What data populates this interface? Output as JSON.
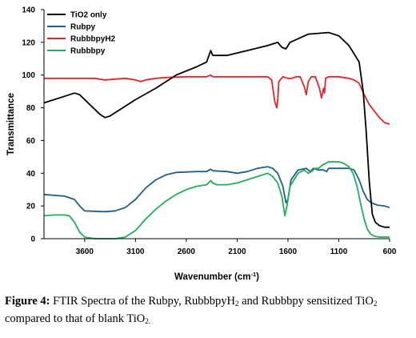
{
  "chart_data": {
    "type": "line",
    "xlabel": "Wavenumber (cm",
    "xlabel_sup": "-1",
    "xlabel_close": ")",
    "ylabel": "Transmittance",
    "xlim": [
      4000,
      600
    ],
    "ylim": [
      0,
      140
    ],
    "x_ticks": [
      3600,
      3100,
      2600,
      2100,
      1600,
      1100,
      600
    ],
    "y_ticks": [
      0,
      20,
      40,
      60,
      80,
      100,
      120,
      140
    ],
    "grid": false,
    "legend_position": "top-left",
    "series": [
      {
        "name": "TiO2 only",
        "color": "#000000",
        "points": [
          [
            4000,
            83
          ],
          [
            3900,
            85
          ],
          [
            3800,
            87
          ],
          [
            3700,
            89
          ],
          [
            3650,
            88
          ],
          [
            3550,
            82
          ],
          [
            3450,
            76
          ],
          [
            3400,
            74
          ],
          [
            3350,
            75
          ],
          [
            3250,
            79
          ],
          [
            3100,
            85
          ],
          [
            2900,
            92
          ],
          [
            2700,
            100
          ],
          [
            2500,
            105
          ],
          [
            2400,
            108
          ],
          [
            2360,
            115
          ],
          [
            2340,
            112
          ],
          [
            2200,
            112
          ],
          [
            2000,
            115
          ],
          [
            1800,
            118
          ],
          [
            1700,
            120
          ],
          [
            1660,
            117
          ],
          [
            1620,
            116
          ],
          [
            1580,
            120
          ],
          [
            1400,
            125
          ],
          [
            1200,
            126
          ],
          [
            1100,
            124
          ],
          [
            1000,
            118
          ],
          [
            900,
            108
          ],
          [
            860,
            90
          ],
          [
            830,
            65
          ],
          [
            800,
            35
          ],
          [
            770,
            15
          ],
          [
            740,
            10
          ],
          [
            700,
            8
          ],
          [
            650,
            7
          ],
          [
            600,
            7
          ]
        ]
      },
      {
        "name": "Rubpy",
        "color": "#1f5f8b",
        "points": [
          [
            4000,
            27
          ],
          [
            3900,
            26.5
          ],
          [
            3800,
            26
          ],
          [
            3700,
            24
          ],
          [
            3650,
            20
          ],
          [
            3600,
            17
          ],
          [
            3400,
            16.5
          ],
          [
            3300,
            17
          ],
          [
            3200,
            19
          ],
          [
            3100,
            24
          ],
          [
            3000,
            31
          ],
          [
            2900,
            36
          ],
          [
            2800,
            39
          ],
          [
            2700,
            40.5
          ],
          [
            2500,
            41
          ],
          [
            2400,
            41
          ],
          [
            2360,
            42.5
          ],
          [
            2340,
            41.5
          ],
          [
            2200,
            41
          ],
          [
            2100,
            40
          ],
          [
            2000,
            41
          ],
          [
            1900,
            43
          ],
          [
            1800,
            44
          ],
          [
            1750,
            43
          ],
          [
            1700,
            40
          ],
          [
            1650,
            32
          ],
          [
            1620,
            22
          ],
          [
            1600,
            24
          ],
          [
            1570,
            36
          ],
          [
            1500,
            42
          ],
          [
            1420,
            43
          ],
          [
            1380,
            41
          ],
          [
            1350,
            43
          ],
          [
            1300,
            42
          ],
          [
            1250,
            42
          ],
          [
            1220,
            41
          ],
          [
            1200,
            43
          ],
          [
            1100,
            43
          ],
          [
            1000,
            43
          ],
          [
            950,
            42
          ],
          [
            900,
            36
          ],
          [
            860,
            29
          ],
          [
            820,
            24
          ],
          [
            780,
            22
          ],
          [
            720,
            20.5
          ],
          [
            650,
            20
          ],
          [
            600,
            19
          ]
        ]
      },
      {
        "name": "RubbbpyH2",
        "color": "#e8242b",
        "points": [
          [
            4000,
            98
          ],
          [
            3800,
            98
          ],
          [
            3600,
            98
          ],
          [
            3500,
            98
          ],
          [
            3400,
            97
          ],
          [
            3200,
            98
          ],
          [
            3100,
            97
          ],
          [
            3050,
            96
          ],
          [
            3000,
            97
          ],
          [
            2900,
            98
          ],
          [
            2800,
            98.5
          ],
          [
            2600,
            99
          ],
          [
            2400,
            99
          ],
          [
            2360,
            100
          ],
          [
            2340,
            99
          ],
          [
            2200,
            99
          ],
          [
            2000,
            99
          ],
          [
            1900,
            99
          ],
          [
            1800,
            99
          ],
          [
            1760,
            97
          ],
          [
            1730,
            84
          ],
          [
            1710,
            80
          ],
          [
            1700,
            85
          ],
          [
            1690,
            96
          ],
          [
            1650,
            99
          ],
          [
            1600,
            98
          ],
          [
            1560,
            98
          ],
          [
            1520,
            99
          ],
          [
            1480,
            99
          ],
          [
            1440,
            93
          ],
          [
            1420,
            88
          ],
          [
            1400,
            96
          ],
          [
            1370,
            99
          ],
          [
            1330,
            99
          ],
          [
            1290,
            92
          ],
          [
            1270,
            86
          ],
          [
            1250,
            92
          ],
          [
            1240,
            89
          ],
          [
            1230,
            98
          ],
          [
            1200,
            99
          ],
          [
            1100,
            99
          ],
          [
            1000,
            98
          ],
          [
            950,
            97
          ],
          [
            900,
            95
          ],
          [
            850,
            88
          ],
          [
            800,
            82
          ],
          [
            750,
            78
          ],
          [
            700,
            74
          ],
          [
            650,
            71
          ],
          [
            600,
            70
          ]
        ]
      },
      {
        "name": "Rubbbpy",
        "color": "#1fb05a",
        "points": [
          [
            4000,
            14
          ],
          [
            3900,
            14.5
          ],
          [
            3800,
            14.5
          ],
          [
            3750,
            14
          ],
          [
            3700,
            10
          ],
          [
            3650,
            4
          ],
          [
            3600,
            1
          ],
          [
            3500,
            0
          ],
          [
            3300,
            0
          ],
          [
            3200,
            1
          ],
          [
            3100,
            5
          ],
          [
            3000,
            12
          ],
          [
            2900,
            18
          ],
          [
            2800,
            23
          ],
          [
            2700,
            27
          ],
          [
            2600,
            30
          ],
          [
            2500,
            32
          ],
          [
            2400,
            33
          ],
          [
            2360,
            35.5
          ],
          [
            2340,
            34
          ],
          [
            2300,
            33
          ],
          [
            2200,
            33
          ],
          [
            2100,
            34
          ],
          [
            2000,
            36
          ],
          [
            1900,
            38
          ],
          [
            1800,
            40
          ],
          [
            1750,
            38
          ],
          [
            1700,
            34
          ],
          [
            1660,
            26
          ],
          [
            1630,
            14
          ],
          [
            1610,
            20
          ],
          [
            1580,
            32
          ],
          [
            1500,
            40
          ],
          [
            1440,
            42
          ],
          [
            1400,
            40
          ],
          [
            1370,
            41
          ],
          [
            1330,
            43
          ],
          [
            1300,
            43
          ],
          [
            1280,
            44
          ],
          [
            1260,
            45
          ],
          [
            1200,
            47
          ],
          [
            1100,
            47
          ],
          [
            1050,
            46
          ],
          [
            1000,
            44
          ],
          [
            960,
            40
          ],
          [
            920,
            32
          ],
          [
            880,
            20
          ],
          [
            850,
            12
          ],
          [
            820,
            6
          ],
          [
            790,
            3
          ],
          [
            750,
            1.5
          ],
          [
            700,
            1
          ],
          [
            650,
            1
          ],
          [
            600,
            1
          ]
        ]
      }
    ]
  },
  "caption": {
    "label": "Figure 4:",
    "part1": " FTIR Spectra of the Rubpy, RubbbpyH",
    "sub1": "2",
    "part2": " and Rubbbpy sensitized TiO",
    "sub2": "2",
    "part3": " compared to that of blank TiO",
    "sub3": "2."
  }
}
